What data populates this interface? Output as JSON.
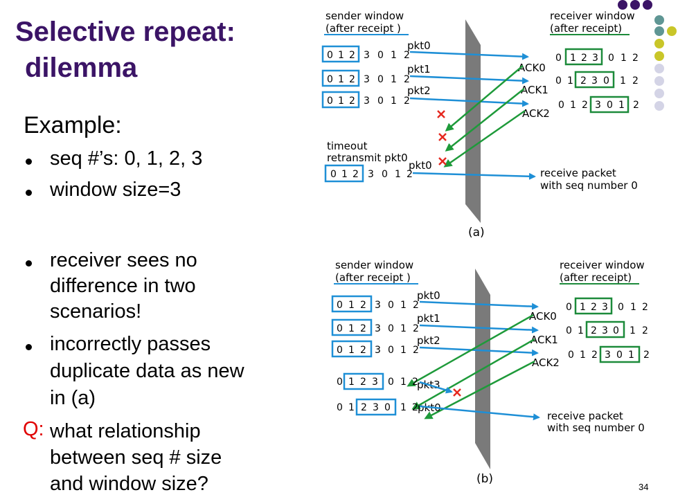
{
  "title": {
    "line1": "Selective repeat:",
    "line2": "dilemma"
  },
  "left": {
    "example_heading": "Example:",
    "bullets_top": [
      "seq #’s: 0, 1, 2, 3",
      "window size=3"
    ],
    "bullets_bottom": [
      [
        "receiver sees no",
        "difference in two",
        "scenarios!"
      ],
      [
        "incorrectly passes",
        "duplicate data as new",
        "in (a)"
      ]
    ],
    "question_marker": "Q:",
    "question_lines": [
      " what relationship",
      "between seq # size",
      "and window size?"
    ]
  },
  "slide_number": "34",
  "colors": {
    "title": "#3b1466",
    "sender_box": "#1e8fd6",
    "receiver_box": "#1c8a3a",
    "arrow_blue": "#1e8fd6",
    "arrow_green": "#1e9a3a",
    "loss_x": "#e5281f",
    "wall": "#7a7a7a"
  },
  "scenario_a": {
    "sender_label": [
      "sender window",
      "(after receipt )"
    ],
    "receiver_label": [
      "receiver window",
      "(after receipt)"
    ],
    "packet_labels": [
      "pkt0",
      "pkt1",
      "pkt2"
    ],
    "ack_labels": [
      "ACK0",
      "ACK1",
      "ACK2"
    ],
    "timeout_label": [
      "timeout",
      "retransmit pkt0"
    ],
    "retransmit_label": "pkt0",
    "receive_note": [
      "receive packet",
      "with seq number 0"
    ],
    "caption": "(a)",
    "sender_seq_rows": [
      [
        "0",
        "1",
        "2",
        "3",
        "0",
        "1",
        "2"
      ],
      [
        "0",
        "1",
        "2",
        "3",
        "0",
        "1",
        "2"
      ],
      [
        "0",
        "1",
        "2",
        "3",
        "0",
        "1",
        "2"
      ],
      [
        "0",
        "1",
        "2",
        "3",
        "0",
        "1",
        "2"
      ]
    ],
    "receiver_seq_rows": [
      [
        "0",
        "1",
        "2",
        "3",
        "0",
        "1",
        "2"
      ],
      [
        "0",
        "1",
        "2",
        "3",
        "0",
        "1",
        "2"
      ],
      [
        "0",
        "1",
        "2",
        "3",
        "0",
        "1",
        "2"
      ]
    ]
  },
  "scenario_b": {
    "sender_label": [
      "sender window",
      "(after receipt )"
    ],
    "receiver_label": [
      "receiver window",
      "(after receipt)"
    ],
    "packet_labels": [
      "pkt0",
      "pkt1",
      "pkt2"
    ],
    "ack_labels": [
      "ACK0",
      "ACK1",
      "ACK2"
    ],
    "new_packet_labels": [
      "pkt3",
      "pkt0"
    ],
    "receive_note": [
      "receive packet",
      "with seq number 0"
    ],
    "caption": "(b)",
    "sender_seq_rows": [
      [
        "0",
        "1",
        "2",
        "3",
        "0",
        "1",
        "2"
      ],
      [
        "0",
        "1",
        "2",
        "3",
        "0",
        "1",
        "2"
      ],
      [
        "0",
        "1",
        "2",
        "3",
        "0",
        "1",
        "2"
      ],
      [
        "0",
        "1",
        "2",
        "3",
        "0",
        "1",
        "2"
      ],
      [
        "0",
        "1",
        "2",
        "3",
        "0",
        "1",
        "2"
      ]
    ],
    "receiver_seq_rows": [
      [
        "0",
        "1",
        "2",
        "3",
        "0",
        "1",
        "2"
      ],
      [
        "0",
        "1",
        "2",
        "3",
        "0",
        "1",
        "2"
      ],
      [
        "0",
        "1",
        "2",
        "3",
        "0",
        "1",
        "2"
      ]
    ]
  }
}
